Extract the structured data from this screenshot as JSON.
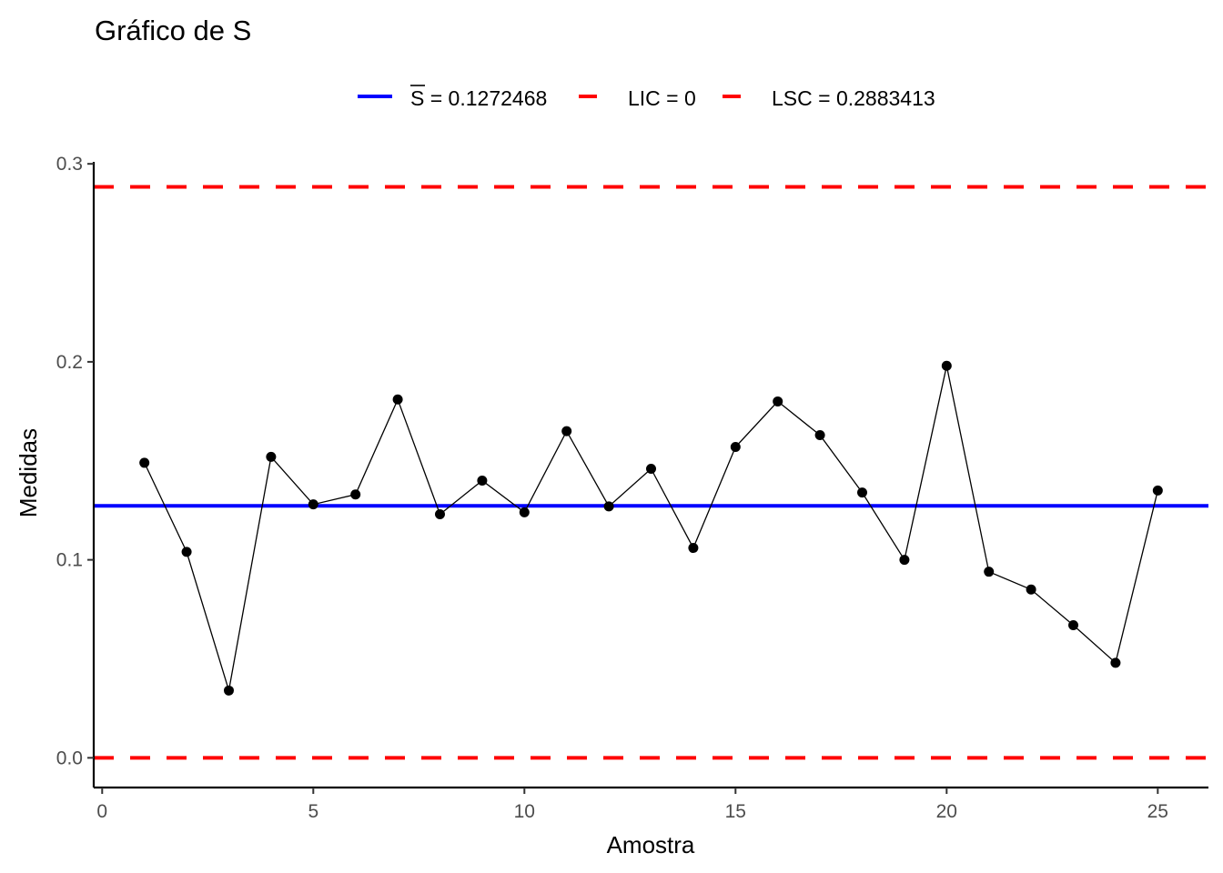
{
  "chart_data": {
    "type": "line",
    "title": "Gráfico de S",
    "xlabel": "Amostra",
    "ylabel": "Medidas",
    "xlim": [
      -0.2,
      26.2
    ],
    "ylim": [
      -0.015,
      0.301
    ],
    "xticks": [
      0,
      5,
      10,
      15,
      20,
      25
    ],
    "xtick_labels": [
      "0",
      "5",
      "10",
      "15",
      "20",
      "25"
    ],
    "yticks": [
      0.0,
      0.1,
      0.2,
      0.3
    ],
    "ytick_labels": [
      "0.0",
      "0.1",
      "0.2",
      "0.3"
    ],
    "grid": false,
    "legend_position": "top",
    "legend": [
      {
        "symbol": "S",
        "label": " = 0.1272468",
        "color": "#0000ff",
        "style": "solid",
        "overline": true
      },
      {
        "symbol": "",
        "label": "LIC = 0",
        "color": "#ff0000",
        "style": "dashed",
        "overline": false
      },
      {
        "symbol": "",
        "label": "LSC = 0.2883413",
        "color": "#ff0000",
        "style": "dashed",
        "overline": false
      }
    ],
    "reference_lines": [
      {
        "value": 0.1272468,
        "color": "#0000ff",
        "style": "solid"
      },
      {
        "value": 0,
        "color": "#ff0000",
        "style": "dashed"
      },
      {
        "value": 0.2883413,
        "color": "#ff0000",
        "style": "dashed"
      }
    ],
    "series": [
      {
        "color": "#000000",
        "x": [
          1,
          2,
          3,
          4,
          5,
          6,
          7,
          8,
          9,
          10,
          11,
          12,
          13,
          14,
          15,
          16,
          17,
          18,
          19,
          20,
          21,
          22,
          23,
          24,
          25
        ],
        "y": [
          0.149,
          0.104,
          0.034,
          0.152,
          0.128,
          0.133,
          0.181,
          0.123,
          0.14,
          0.124,
          0.165,
          0.127,
          0.146,
          0.106,
          0.157,
          0.18,
          0.163,
          0.134,
          0.1,
          0.198,
          0.094,
          0.085,
          0.067,
          0.048,
          0.135
        ]
      }
    ]
  }
}
